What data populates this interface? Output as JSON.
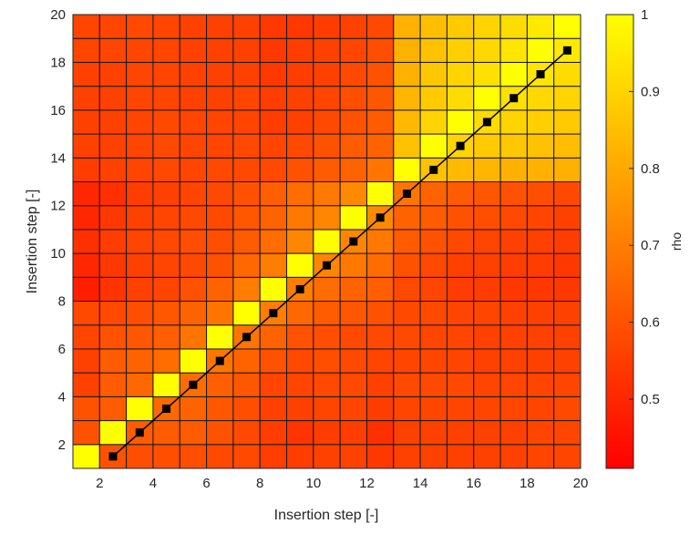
{
  "chart_data": {
    "type": "heatmap",
    "title": "",
    "xlabel": "Insertion step [-]",
    "ylabel": "Insertion step [-]",
    "x_range": [
      1,
      20
    ],
    "y_range": [
      1,
      20
    ],
    "x_ticks": [
      "2",
      "4",
      "6",
      "8",
      "10",
      "12",
      "14",
      "16",
      "18",
      "20"
    ],
    "y_ticks": [
      "2",
      "4",
      "6",
      "8",
      "10",
      "12",
      "14",
      "16",
      "18",
      "20"
    ],
    "grid": true,
    "colorbar": {
      "label": "rho",
      "range": [
        0.41,
        1.0
      ],
      "ticks": [
        "0.5",
        "0.6",
        "0.7",
        "0.8",
        "0.9",
        "1"
      ],
      "colormap": "autumn",
      "low_color": "#ff0000",
      "high_color": "#ffff00"
    },
    "matrix_note": "rows = y step 1..19 (bottom to top), cols = x step 1..19 (left to right), values = rho",
    "matrix": [
      [
        1.0,
        0.6,
        0.59,
        0.59,
        0.59,
        0.58,
        0.58,
        0.55,
        0.55,
        0.56,
        0.56,
        0.54,
        0.56,
        0.56,
        0.56,
        0.56,
        0.56,
        0.57,
        0.57
      ],
      [
        0.6,
        1.0,
        0.62,
        0.62,
        0.62,
        0.6,
        0.58,
        0.55,
        0.53,
        0.55,
        0.55,
        0.52,
        0.56,
        0.56,
        0.56,
        0.56,
        0.56,
        0.57,
        0.57
      ],
      [
        0.6,
        0.62,
        1.0,
        0.65,
        0.64,
        0.61,
        0.59,
        0.56,
        0.56,
        0.57,
        0.57,
        0.55,
        0.57,
        0.57,
        0.57,
        0.57,
        0.57,
        0.57,
        0.58
      ],
      [
        0.56,
        0.62,
        0.65,
        1.0,
        0.66,
        0.63,
        0.61,
        0.57,
        0.57,
        0.58,
        0.58,
        0.56,
        0.58,
        0.58,
        0.58,
        0.57,
        0.57,
        0.57,
        0.57
      ],
      [
        0.56,
        0.62,
        0.64,
        0.66,
        1.0,
        0.68,
        0.64,
        0.6,
        0.58,
        0.59,
        0.58,
        0.57,
        0.57,
        0.57,
        0.57,
        0.56,
        0.56,
        0.56,
        0.56
      ],
      [
        0.57,
        0.6,
        0.61,
        0.63,
        0.68,
        1.0,
        0.68,
        0.64,
        0.6,
        0.59,
        0.58,
        0.58,
        0.58,
        0.57,
        0.57,
        0.56,
        0.56,
        0.56,
        0.56
      ],
      [
        0.58,
        0.58,
        0.59,
        0.61,
        0.64,
        0.68,
        1.0,
        0.7,
        0.65,
        0.62,
        0.61,
        0.6,
        0.58,
        0.58,
        0.57,
        0.57,
        0.56,
        0.56,
        0.56
      ],
      [
        0.48,
        0.53,
        0.56,
        0.57,
        0.6,
        0.64,
        0.7,
        1.0,
        0.7,
        0.66,
        0.64,
        0.63,
        0.58,
        0.57,
        0.55,
        0.55,
        0.54,
        0.54,
        0.54
      ],
      [
        0.5,
        0.54,
        0.56,
        0.57,
        0.58,
        0.6,
        0.65,
        0.7,
        1.0,
        0.72,
        0.69,
        0.66,
        0.6,
        0.58,
        0.56,
        0.56,
        0.55,
        0.55,
        0.54
      ],
      [
        0.52,
        0.55,
        0.57,
        0.58,
        0.59,
        0.59,
        0.62,
        0.66,
        0.72,
        1.0,
        0.72,
        0.69,
        0.62,
        0.6,
        0.58,
        0.57,
        0.56,
        0.56,
        0.55
      ],
      [
        0.5,
        0.54,
        0.56,
        0.57,
        0.58,
        0.58,
        0.61,
        0.64,
        0.69,
        0.72,
        1.0,
        0.73,
        0.64,
        0.62,
        0.6,
        0.59,
        0.58,
        0.57,
        0.56
      ],
      [
        0.5,
        0.52,
        0.55,
        0.56,
        0.57,
        0.58,
        0.6,
        0.63,
        0.66,
        0.69,
        0.73,
        1.0,
        0.68,
        0.64,
        0.62,
        0.61,
        0.6,
        0.59,
        0.58
      ],
      [
        0.55,
        0.56,
        0.57,
        0.58,
        0.57,
        0.58,
        0.58,
        0.58,
        0.6,
        0.62,
        0.64,
        0.68,
        1.0,
        0.86,
        0.84,
        0.83,
        0.82,
        0.82,
        0.82
      ],
      [
        0.56,
        0.56,
        0.57,
        0.58,
        0.57,
        0.57,
        0.58,
        0.57,
        0.58,
        0.6,
        0.62,
        0.64,
        0.86,
        1.0,
        0.9,
        0.88,
        0.87,
        0.86,
        0.85
      ],
      [
        0.56,
        0.56,
        0.57,
        0.58,
        0.57,
        0.57,
        0.57,
        0.55,
        0.56,
        0.58,
        0.6,
        0.62,
        0.84,
        0.9,
        1.0,
        0.92,
        0.9,
        0.89,
        0.88
      ],
      [
        0.56,
        0.56,
        0.57,
        0.57,
        0.56,
        0.56,
        0.57,
        0.55,
        0.56,
        0.57,
        0.59,
        0.61,
        0.83,
        0.88,
        0.92,
        1.0,
        0.93,
        0.91,
        0.9
      ],
      [
        0.56,
        0.56,
        0.57,
        0.57,
        0.56,
        0.56,
        0.56,
        0.54,
        0.55,
        0.56,
        0.58,
        0.6,
        0.82,
        0.87,
        0.9,
        0.93,
        1.0,
        0.94,
        0.92
      ],
      [
        0.57,
        0.57,
        0.57,
        0.57,
        0.56,
        0.56,
        0.56,
        0.54,
        0.55,
        0.56,
        0.57,
        0.59,
        0.82,
        0.86,
        0.89,
        0.91,
        0.94,
        1.0,
        0.95
      ],
      [
        0.57,
        0.57,
        0.58,
        0.57,
        0.56,
        0.56,
        0.56,
        0.54,
        0.54,
        0.55,
        0.56,
        0.58,
        0.82,
        0.85,
        0.88,
        0.9,
        0.92,
        0.95,
        1.0
      ]
    ],
    "series": [
      {
        "type": "line",
        "marker": "square",
        "color": "#000000",
        "x": [
          2.5,
          3.5,
          4.5,
          5.5,
          6.5,
          7.5,
          8.5,
          9.5,
          10.5,
          11.5,
          12.5,
          13.5,
          14.5,
          15.5,
          16.5,
          17.5,
          18.5,
          19.5
        ],
        "y": [
          1.5,
          2.5,
          3.5,
          4.5,
          5.5,
          6.5,
          7.5,
          8.5,
          9.5,
          10.5,
          11.5,
          12.5,
          13.5,
          14.5,
          15.5,
          16.5,
          17.5,
          18.5
        ]
      }
    ]
  }
}
